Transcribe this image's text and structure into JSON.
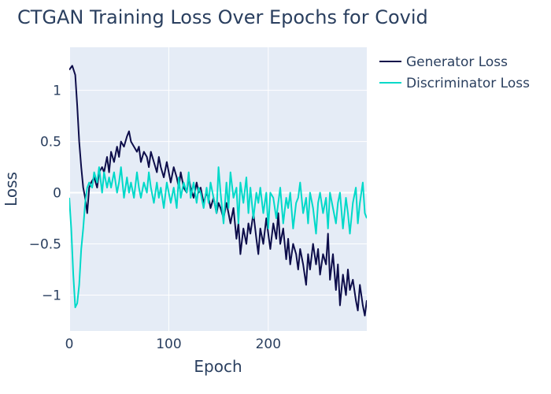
{
  "chart_data": {
    "type": "line",
    "title": "CTGAN Training Loss Over Epochs for Covid",
    "xlabel": "Epoch",
    "ylabel": "Loss",
    "xlim": [
      0,
      299
    ],
    "ylim": [
      -1.35,
      1.42
    ],
    "x_ticks": [
      0,
      100,
      200
    ],
    "y_ticks": [
      -1,
      -0.5,
      0,
      0.5,
      1
    ],
    "x_tick_labels": [
      "0",
      "100",
      "200"
    ],
    "y_tick_labels": [
      "−1",
      "−0.5",
      "0",
      "0.5",
      "1"
    ],
    "grid": true,
    "legend_position": "top-right",
    "series": [
      {
        "name": "Generator Loss",
        "color": "#0d0d4a",
        "x": [
          0,
          3,
          6,
          8,
          10,
          12,
          14,
          16,
          18,
          20,
          22,
          25,
          28,
          30,
          33,
          35,
          38,
          40,
          42,
          45,
          48,
          50,
          52,
          55,
          58,
          60,
          62,
          65,
          68,
          70,
          72,
          75,
          78,
          80,
          82,
          85,
          88,
          90,
          92,
          95,
          98,
          100,
          102,
          105,
          108,
          110,
          112,
          115,
          118,
          120,
          122,
          125,
          128,
          130,
          132,
          135,
          138,
          140,
          142,
          145,
          148,
          150,
          152,
          155,
          158,
          160,
          162,
          165,
          168,
          170,
          172,
          175,
          178,
          180,
          182,
          185,
          188,
          190,
          192,
          195,
          198,
          200,
          202,
          205,
          208,
          210,
          212,
          215,
          218,
          220,
          222,
          225,
          228,
          230,
          232,
          235,
          238,
          240,
          242,
          245,
          248,
          250,
          252,
          255,
          258,
          260,
          262,
          265,
          268,
          270,
          272,
          275,
          278,
          280,
          282,
          285,
          288,
          290,
          292,
          295,
          297,
          299
        ],
        "y": [
          1.2,
          1.24,
          1.15,
          0.85,
          0.5,
          0.25,
          0.05,
          -0.05,
          -0.2,
          0.05,
          0.1,
          0.15,
          0.05,
          0.2,
          0.25,
          0.2,
          0.35,
          0.2,
          0.4,
          0.3,
          0.45,
          0.35,
          0.5,
          0.45,
          0.55,
          0.6,
          0.5,
          0.45,
          0.4,
          0.45,
          0.3,
          0.4,
          0.35,
          0.25,
          0.4,
          0.3,
          0.2,
          0.35,
          0.25,
          0.15,
          0.3,
          0.2,
          0.1,
          0.25,
          0.15,
          0.05,
          0.2,
          0.05,
          0.0,
          0.15,
          0.05,
          -0.05,
          0.1,
          0.0,
          0.05,
          -0.1,
          0.0,
          -0.05,
          -0.15,
          -0.05,
          -0.2,
          -0.1,
          -0.15,
          -0.25,
          -0.1,
          -0.2,
          -0.3,
          -0.15,
          -0.45,
          -0.3,
          -0.6,
          -0.35,
          -0.5,
          -0.3,
          -0.4,
          -0.2,
          -0.45,
          -0.6,
          -0.35,
          -0.5,
          -0.25,
          -0.4,
          -0.55,
          -0.3,
          -0.45,
          -0.2,
          -0.5,
          -0.35,
          -0.65,
          -0.45,
          -0.7,
          -0.5,
          -0.6,
          -0.75,
          -0.55,
          -0.7,
          -0.9,
          -0.6,
          -0.75,
          -0.5,
          -0.7,
          -0.55,
          -0.8,
          -0.6,
          -0.7,
          -0.4,
          -0.85,
          -0.6,
          -0.95,
          -0.7,
          -1.1,
          -0.8,
          -1.0,
          -0.75,
          -0.95,
          -0.85,
          -1.05,
          -1.15,
          -0.9,
          -1.1,
          -1.2,
          -1.05
        ]
      },
      {
        "name": "Discriminator Loss",
        "color": "#00d9c9",
        "x": [
          0,
          2,
          4,
          6,
          8,
          10,
          12,
          14,
          16,
          18,
          20,
          23,
          25,
          28,
          30,
          33,
          35,
          38,
          40,
          42,
          45,
          48,
          50,
          52,
          55,
          58,
          60,
          62,
          65,
          68,
          70,
          72,
          75,
          78,
          80,
          82,
          85,
          88,
          90,
          92,
          95,
          98,
          100,
          102,
          105,
          108,
          110,
          112,
          115,
          118,
          120,
          122,
          125,
          128,
          130,
          132,
          135,
          138,
          140,
          142,
          145,
          148,
          150,
          152,
          155,
          158,
          160,
          162,
          165,
          168,
          170,
          172,
          175,
          178,
          180,
          182,
          185,
          188,
          190,
          192,
          195,
          198,
          200,
          202,
          205,
          208,
          210,
          212,
          215,
          218,
          220,
          222,
          225,
          228,
          230,
          232,
          235,
          238,
          240,
          242,
          245,
          248,
          250,
          252,
          255,
          258,
          260,
          262,
          265,
          268,
          270,
          272,
          275,
          278,
          280,
          282,
          285,
          288,
          290,
          292,
          295,
          297,
          299
        ],
        "y": [
          -0.05,
          -0.35,
          -0.8,
          -1.12,
          -1.08,
          -0.9,
          -0.55,
          -0.35,
          -0.1,
          0.05,
          0.1,
          0.05,
          0.2,
          0.1,
          0.25,
          0.0,
          0.2,
          0.05,
          0.15,
          0.05,
          0.2,
          0.0,
          0.1,
          0.25,
          -0.05,
          0.15,
          0.0,
          0.1,
          -0.05,
          0.2,
          0.05,
          -0.05,
          0.1,
          0.0,
          0.2,
          0.05,
          -0.1,
          0.1,
          -0.05,
          0.05,
          -0.15,
          0.1,
          0.0,
          -0.1,
          0.05,
          -0.15,
          0.15,
          -0.05,
          0.1,
          0.0,
          0.2,
          -0.05,
          0.1,
          -0.1,
          0.05,
          0.0,
          -0.15,
          0.05,
          -0.1,
          0.1,
          -0.05,
          -0.2,
          0.25,
          0.0,
          -0.3,
          0.1,
          -0.15,
          0.2,
          -0.05,
          0.05,
          -0.3,
          0.1,
          -0.1,
          0.15,
          -0.2,
          0.05,
          -0.25,
          0.0,
          -0.1,
          0.05,
          -0.2,
          0.0,
          -0.35,
          0.0,
          -0.05,
          -0.25,
          -0.1,
          0.05,
          -0.3,
          -0.05,
          -0.15,
          0.0,
          -0.35,
          -0.1,
          -0.05,
          0.1,
          -0.2,
          -0.05,
          -0.3,
          0.0,
          -0.15,
          -0.4,
          -0.1,
          0.0,
          -0.2,
          -0.05,
          -0.35,
          0.0,
          -0.15,
          -0.3,
          -0.1,
          0.0,
          -0.35,
          -0.05,
          -0.2,
          -0.4,
          -0.1,
          0.05,
          -0.3,
          -0.1,
          0.1,
          -0.2,
          -0.25
        ]
      }
    ]
  }
}
